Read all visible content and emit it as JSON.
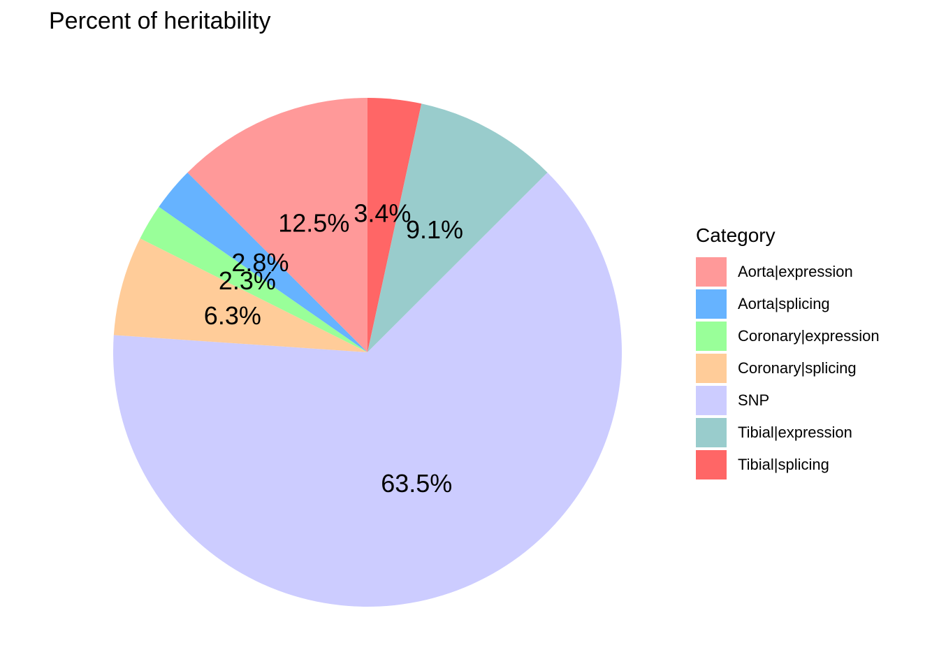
{
  "chart_data": {
    "type": "pie",
    "title": "Percent of heritability",
    "legend_title": "Category",
    "legend_position": "right",
    "slices": [
      {
        "name": "Aorta|expression",
        "value": 12.5,
        "label": "12.5%",
        "color": "#FF9999"
      },
      {
        "name": "Aorta|splicing",
        "value": 2.8,
        "label": "2.8%",
        "color": "#66B3FF"
      },
      {
        "name": "Coronary|expression",
        "value": 2.3,
        "label": "2.3%",
        "color": "#99FF99"
      },
      {
        "name": "Coronary|splicing",
        "value": 6.3,
        "label": "6.3%",
        "color": "#FFCC99"
      },
      {
        "name": "SNP",
        "value": 63.5,
        "label": "63.5%",
        "color": "#CCCCFF"
      },
      {
        "name": "Tibial|expression",
        "value": 9.1,
        "label": "9.1%",
        "color": "#99CCCC"
      },
      {
        "name": "Tibial|splicing",
        "value": 3.4,
        "label": "3.4%",
        "color": "#FF6666"
      }
    ],
    "drawing_order": [
      "Tibial|splicing",
      "Tibial|expression",
      "SNP",
      "Coronary|splicing",
      "Coronary|expression",
      "Aorta|splicing",
      "Aorta|expression"
    ],
    "start": "12 o'clock",
    "direction": "clockwise"
  }
}
